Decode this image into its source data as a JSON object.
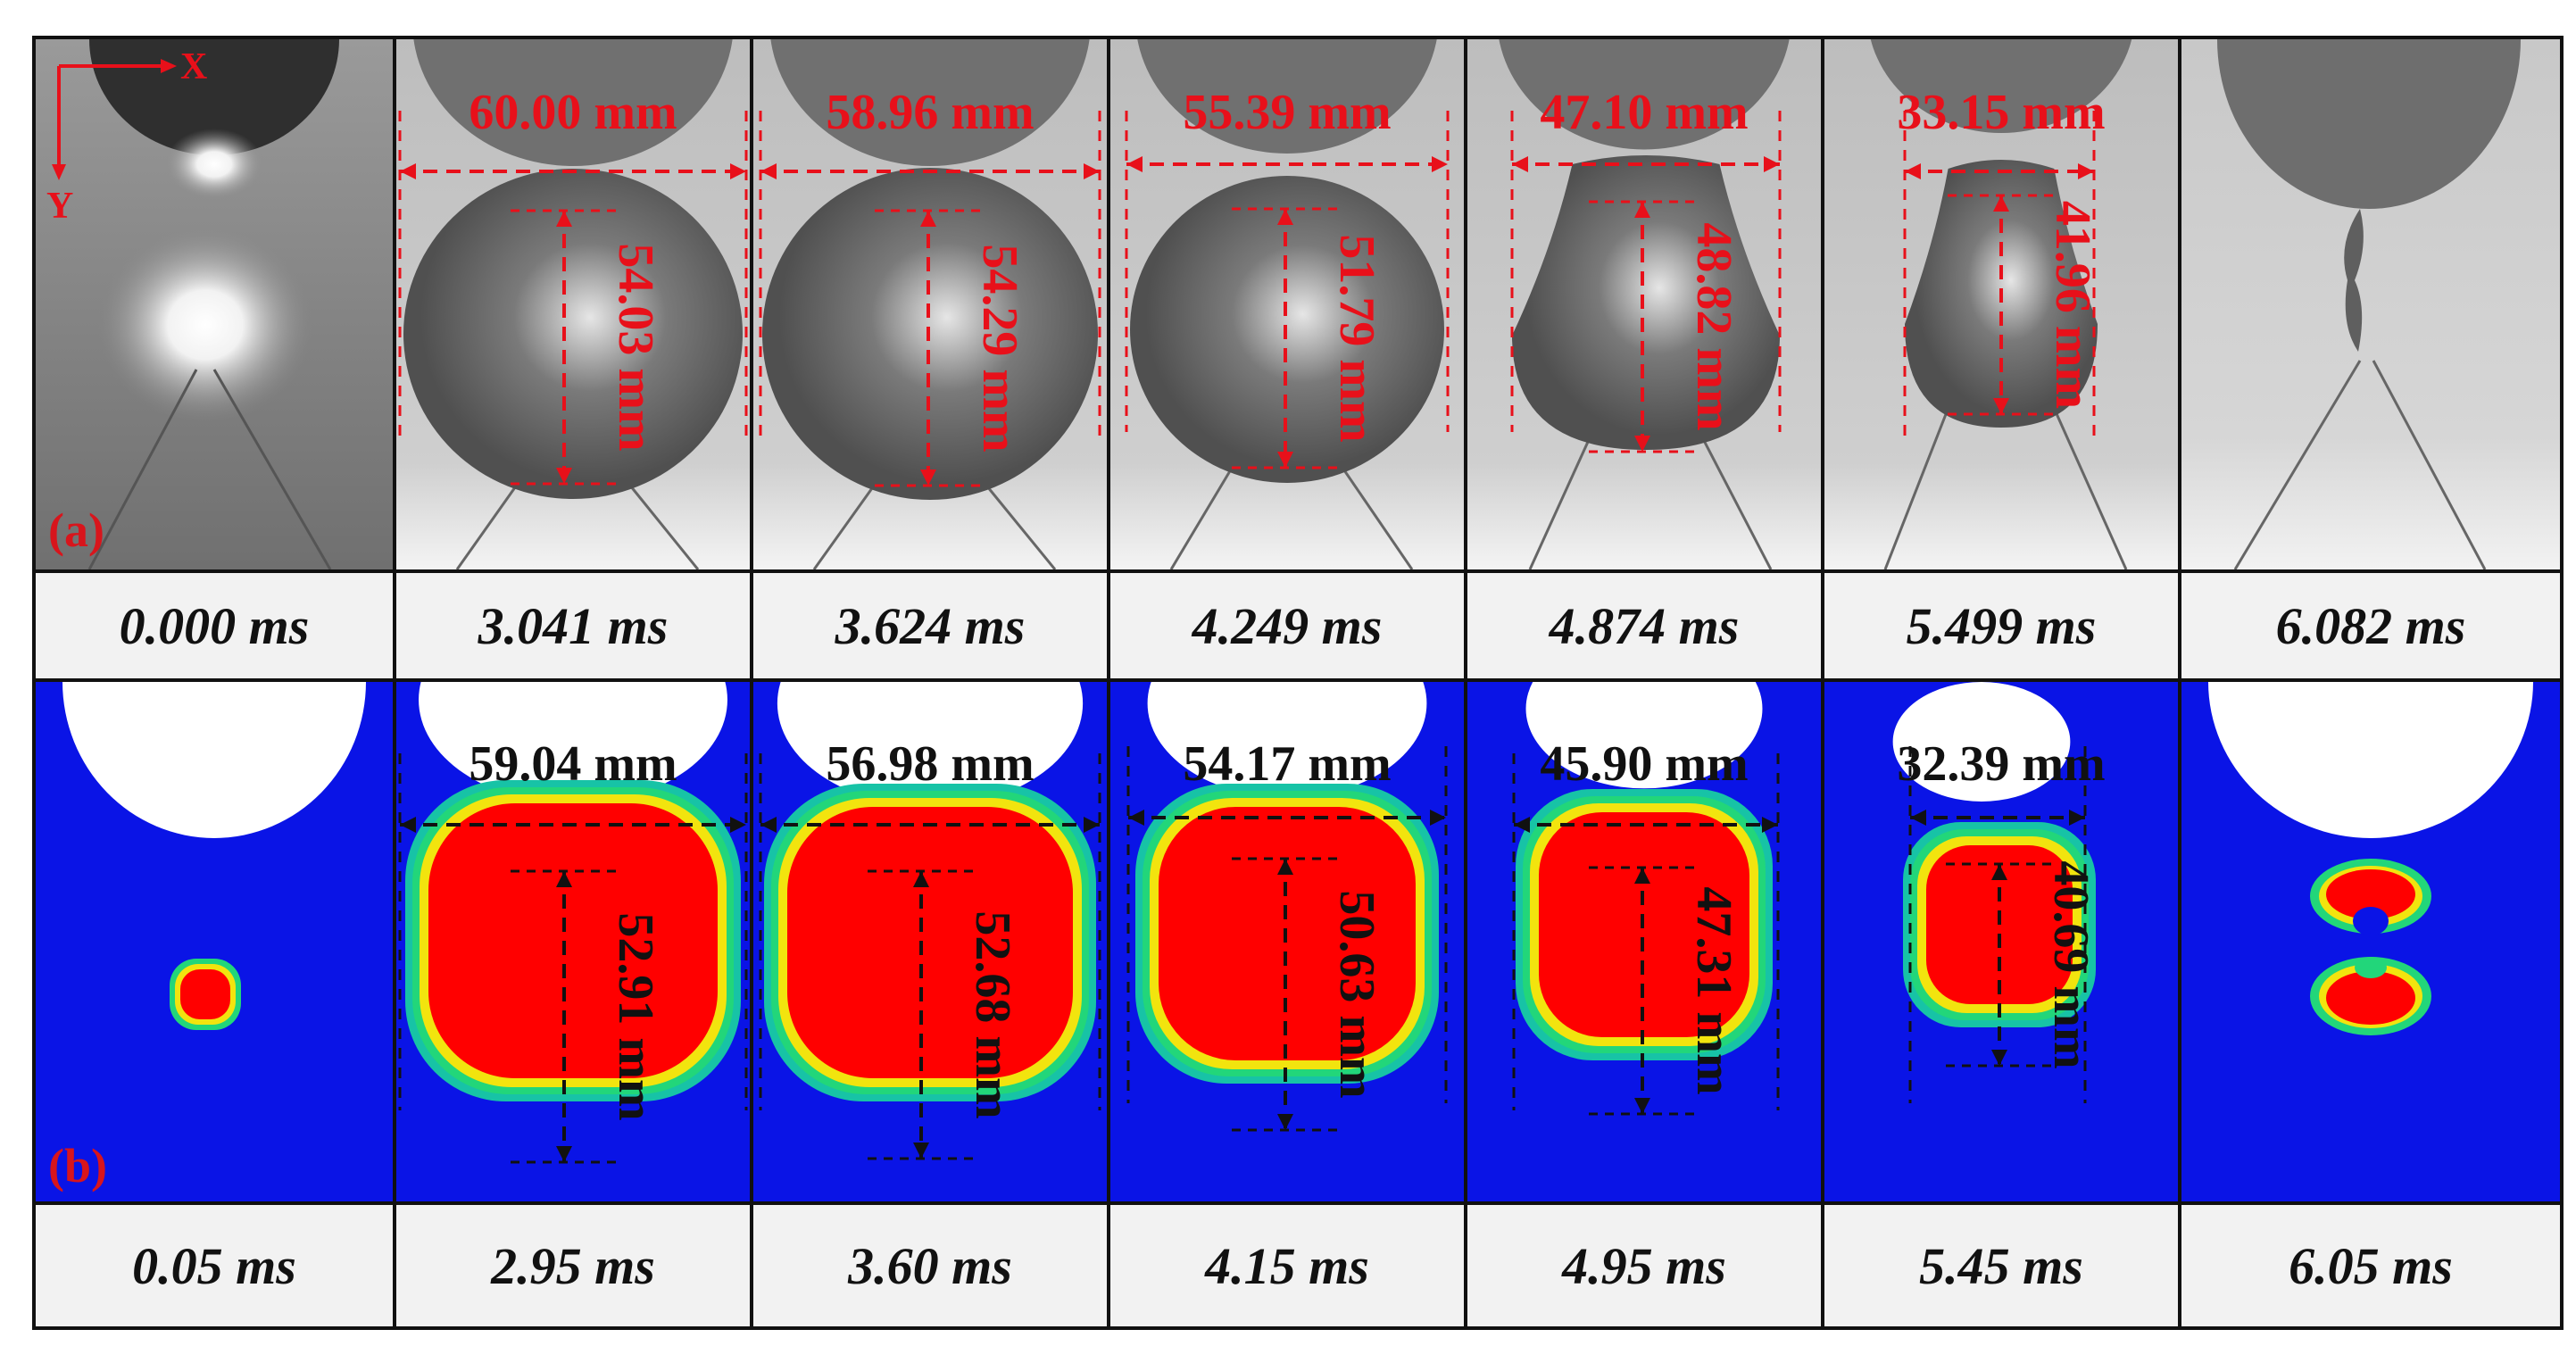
{
  "figure": {
    "row_a": {
      "label": "(a)",
      "axes": {
        "x": "X",
        "y": "Y"
      },
      "times": [
        "0.000 ms",
        "3.041 ms",
        "3.624 ms",
        "4.249 ms",
        "4.874 ms",
        "5.499 ms",
        "6.082 ms"
      ],
      "widths": [
        "",
        "60.00 mm",
        "58.96 mm",
        "55.39 mm",
        "47.10 mm",
        "33.15 mm",
        ""
      ],
      "heights": [
        "",
        "54.03 mm",
        "54.29 mm",
        "51.79 mm",
        "48.82 mm",
        "41.96 mm",
        ""
      ]
    },
    "row_b": {
      "label": "(b)",
      "times": [
        "0.05 ms",
        "2.95 ms",
        "3.60 ms",
        "4.15 ms",
        "4.95 ms",
        "5.45 ms",
        "6.05 ms"
      ],
      "widths": [
        "",
        "59.04 mm",
        "56.98 mm",
        "54.17 mm",
        "45.90 mm",
        "32.39 mm",
        ""
      ],
      "heights": [
        "",
        "52.91 mm",
        "52.68 mm",
        "50.63 mm",
        "47.31 mm",
        "40.69 mm",
        ""
      ]
    },
    "colors": {
      "measure_red": "#e8101a",
      "measure_black": "#111111",
      "sim_background": "#0a14e6",
      "sim_core": "#ff0000",
      "photo_gray": "#8a8a8a",
      "label_red": "#d8151c"
    }
  }
}
